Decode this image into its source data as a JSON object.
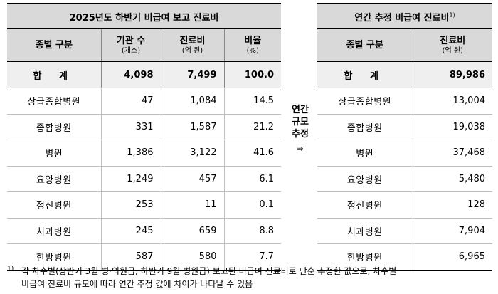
{
  "left_table": {
    "title": "2025년도 하반기 비급여 보고 진료비",
    "headers": {
      "category": "종별 구분",
      "institutions": "기관 수",
      "institutions_unit": "(개소)",
      "cost": "진료비",
      "cost_unit": "(억 원)",
      "ratio": "비율",
      "ratio_unit": "(%)"
    },
    "total": {
      "name": "합 계",
      "institutions": "4,098",
      "cost": "7,499",
      "ratio": "100.0"
    },
    "rows": [
      {
        "name": "상급종합병원",
        "institutions": "47",
        "cost": "1,084",
        "ratio": "14.5"
      },
      {
        "name": "종합병원",
        "institutions": "331",
        "cost": "1,587",
        "ratio": "21.2"
      },
      {
        "name": "병원",
        "institutions": "1,386",
        "cost": "3,122",
        "ratio": "41.6"
      },
      {
        "name": "요양병원",
        "institutions": "1,249",
        "cost": "457",
        "ratio": "6.1"
      },
      {
        "name": "정신병원",
        "institutions": "253",
        "cost": "11",
        "ratio": "0.1"
      },
      {
        "name": "치과병원",
        "institutions": "245",
        "cost": "659",
        "ratio": "8.8"
      },
      {
        "name": "한방병원",
        "institutions": "587",
        "cost": "580",
        "ratio": "7.7"
      }
    ]
  },
  "middle": {
    "line1": "연간",
    "line2": "규모",
    "line3": "추정",
    "arrow": "⇨"
  },
  "right_table": {
    "title": "연간 추정 비급여 진료비",
    "title_sup": "1)",
    "headers": {
      "category": "종별 구분",
      "cost": "진료비",
      "cost_unit": "(억 원)"
    },
    "total": {
      "name": "합 계",
      "cost": "89,986"
    },
    "rows": [
      {
        "name": "상급종합병원",
        "cost": "13,004"
      },
      {
        "name": "종합병원",
        "cost": "19,038"
      },
      {
        "name": "병원",
        "cost": "37,468"
      },
      {
        "name": "요양병원",
        "cost": "5,480"
      },
      {
        "name": "정신병원",
        "cost": "128"
      },
      {
        "name": "치과병원",
        "cost": "7,904"
      },
      {
        "name": "한방병원",
        "cost": "6,965"
      }
    ]
  },
  "footnote": {
    "mark": "1)",
    "line1": "각 차수별(상반기 3월 병·의원급, 하반기 9월 병원급) 보고된 비급여 진료비로 단순 추정한 값으로, 차수별",
    "line2": "비급여 진료비 규모에 따라 연간 추정 값에 차이가 나타날 수 있음"
  }
}
